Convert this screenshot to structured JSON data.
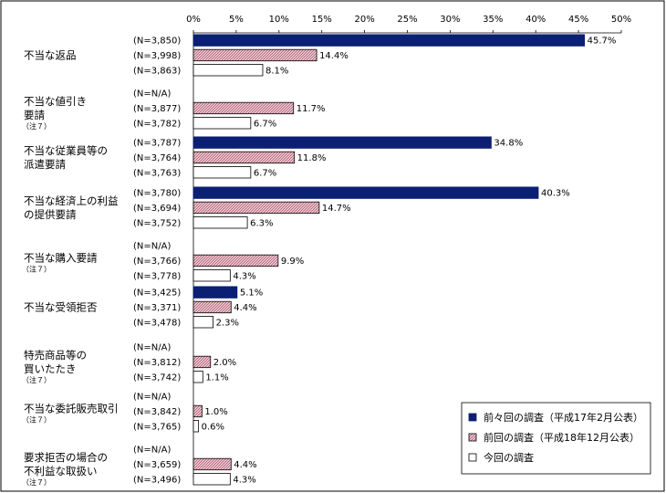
{
  "chart_data": {
    "type": "bar",
    "orientation": "horizontal",
    "x_axis": {
      "min": 0,
      "max": 50,
      "step": 5,
      "tick_labels": [
        "0%",
        "5%",
        "10%",
        "15%",
        "20%",
        "25%",
        "30%",
        "35%",
        "40%",
        "45%",
        "50%"
      ],
      "position": "top",
      "grid": false
    },
    "series_meta": [
      {
        "name": "前々回の調査（平成17年2月公表）",
        "color": "#0b1f73",
        "pattern": "solid"
      },
      {
        "name": "前回の調査（平成18年12月公表）",
        "color": "#c98a9a",
        "pattern": "hatch"
      },
      {
        "name": "今回の調査",
        "color": "#ffffff",
        "pattern": "none"
      }
    ],
    "legend_position": "bottom-right",
    "categories": [
      {
        "lines": [
          "不当な返品"
        ],
        "note": "",
        "n": [
          "(N=3,850)",
          "(N=3,998)",
          "(N=3,863)"
        ],
        "values": [
          45.7,
          14.4,
          8.1
        ],
        "labels": [
          "45.7%",
          "14.4%",
          "8.1%"
        ]
      },
      {
        "lines": [
          "不当な値引き",
          "要請"
        ],
        "note": "（注７）",
        "n": [
          "(N=N/A)",
          "(N=3,877)",
          "(N=3,782)"
        ],
        "values": [
          null,
          11.7,
          6.7
        ],
        "labels": [
          "",
          "11.7%",
          "6.7%"
        ]
      },
      {
        "lines": [
          "不当な従業員等の",
          "派遣要請"
        ],
        "note": "",
        "n": [
          "(N=3,787)",
          "(N=3,764)",
          "(N=3,763)"
        ],
        "values": [
          34.8,
          11.8,
          6.7
        ],
        "labels": [
          "34.8%",
          "11.8%",
          "6.7%"
        ]
      },
      {
        "lines": [
          "不当な経済上の利益",
          "の提供要請"
        ],
        "note": "",
        "n": [
          "(N=3,780)",
          "(N=3,694)",
          "(N=3,752)"
        ],
        "values": [
          40.3,
          14.7,
          6.3
        ],
        "labels": [
          "40.3%",
          "14.7%",
          "6.3%"
        ]
      },
      {
        "lines": [
          "不当な購入要請"
        ],
        "note": "（注７）",
        "n": [
          "(N=N/A)",
          "(N=3,766)",
          "(N=3,778)"
        ],
        "values": [
          null,
          9.9,
          4.3
        ],
        "labels": [
          "",
          "9.9%",
          "4.3%"
        ]
      },
      {
        "lines": [
          "不当な受領拒否"
        ],
        "note": "",
        "n": [
          "(N=3,425)",
          "(N=3,371)",
          "(N=3,478)"
        ],
        "values": [
          5.1,
          4.4,
          2.3
        ],
        "labels": [
          "5.1%",
          "4.4%",
          "2.3%"
        ]
      },
      {
        "lines": [
          "特売商品等の",
          "買いたたき"
        ],
        "note": "（注７）",
        "n": [
          "(N=N/A)",
          "(N=3,812)",
          "(N=3,742)"
        ],
        "values": [
          null,
          2.0,
          1.1
        ],
        "labels": [
          "",
          "2.0%",
          "1.1%"
        ]
      },
      {
        "lines": [
          "不当な委託販売取引"
        ],
        "note": "（注７）",
        "n": [
          "(N=N/A)",
          "(N=3,842)",
          "(N=3,765)"
        ],
        "values": [
          null,
          1.0,
          0.6
        ],
        "labels": [
          "",
          "1.0%",
          "0.6%"
        ]
      },
      {
        "lines": [
          "要求拒否の場合の",
          "不利益な取扱い"
        ],
        "note": "（注７）",
        "n": [
          "(N=N/A)",
          "(N=3,659)",
          "(N=3,496)"
        ],
        "values": [
          null,
          4.4,
          4.3
        ],
        "labels": [
          "",
          "4.4%",
          "4.3%"
        ]
      }
    ]
  }
}
